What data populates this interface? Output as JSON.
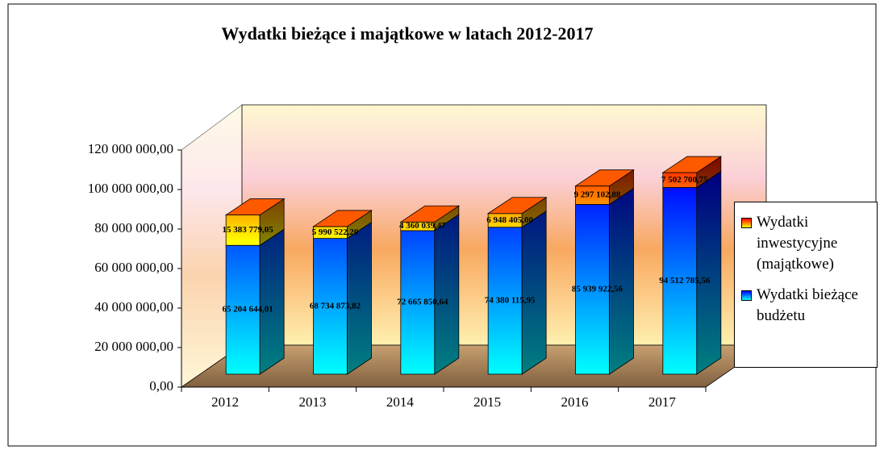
{
  "chart_data": {
    "type": "bar3d_stacked",
    "title": "Wydatki bieżące i majątkowe w latach 2012-2017",
    "categories": [
      "2012",
      "2013",
      "2014",
      "2015",
      "2016",
      "2017"
    ],
    "series": [
      {
        "name": "Wydatki bieżące budżetu",
        "color": "#0000ff",
        "values": [
          65204644.01,
          68734873.82,
          72665850.64,
          74380115.95,
          85939922.56,
          94512785.56
        ],
        "value_labels": [
          "65 204 644,01",
          "68 734 873,82",
          "72 665 850,64",
          "74 380 115,95",
          "85 939 922,56",
          "94 512 785,56"
        ]
      },
      {
        "name": "Wydatki inwestycyjne (majątkowe)",
        "color": "#ff0000",
        "values": [
          15383779.05,
          5990522.2,
          4360039.47,
          6948405.0,
          9297102.88,
          7502700.75
        ],
        "value_labels": [
          "15 383 779,05",
          "5 990 522,20",
          "4 360 039,47",
          "6 948 405,00",
          "9 297 102,88",
          "7 502 700,75"
        ]
      }
    ],
    "ylim": [
      0,
      120000000
    ],
    "yticks": [
      {
        "value": 0,
        "label": "0,00"
      },
      {
        "value": 20000000,
        "label": "20 000 000,00"
      },
      {
        "value": 40000000,
        "label": "40 000 000,00"
      },
      {
        "value": 60000000,
        "label": "60 000 000,00"
      },
      {
        "value": 80000000,
        "label": "80 000 000,00"
      },
      {
        "value": 100000000,
        "label": "100 000 000,00"
      },
      {
        "value": 120000000,
        "label": "120 000 000,00"
      }
    ],
    "grid": false
  }
}
